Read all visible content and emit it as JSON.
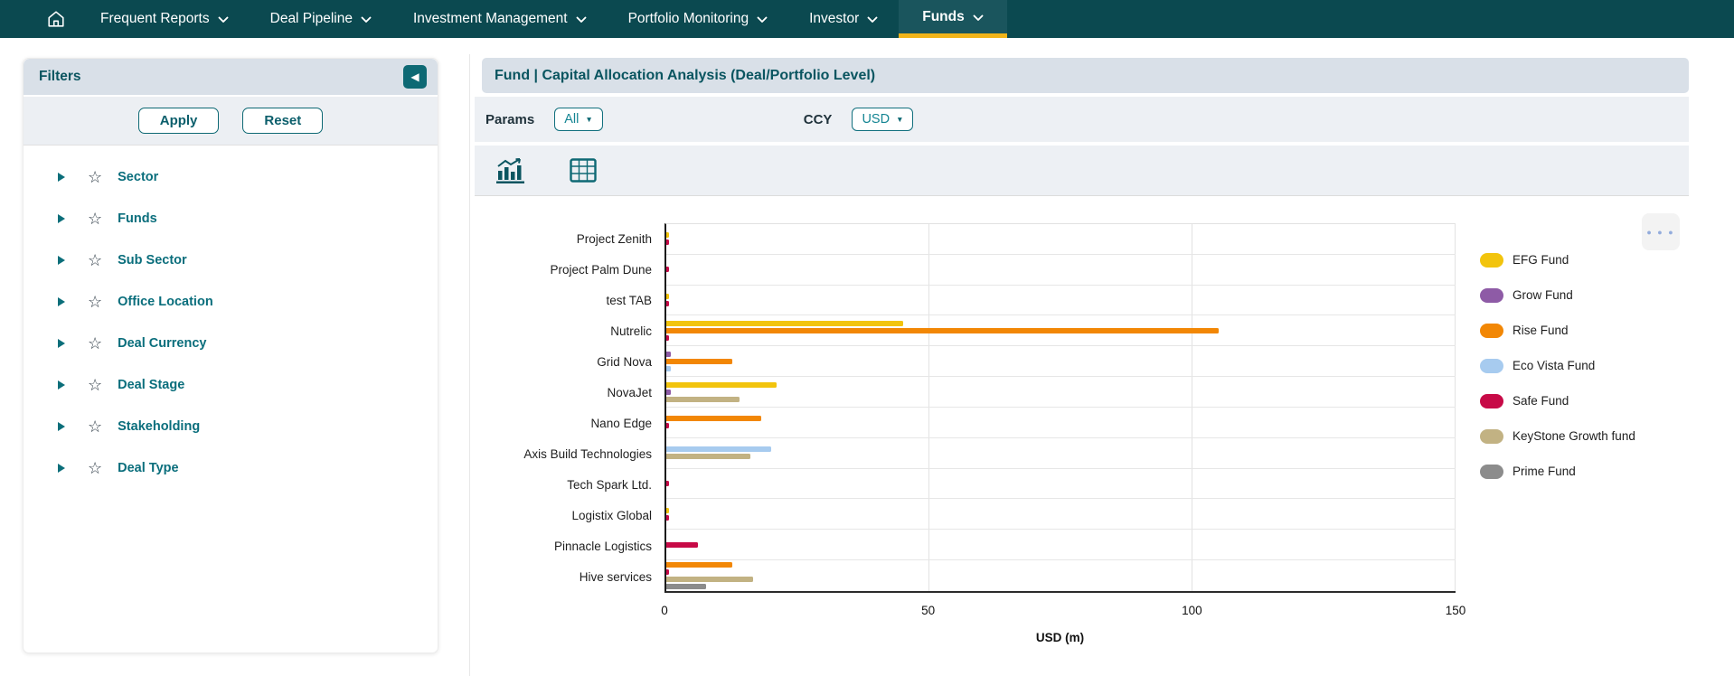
{
  "nav": {
    "items": [
      {
        "label": "Frequent Reports",
        "active": false
      },
      {
        "label": "Deal Pipeline",
        "active": false
      },
      {
        "label": "Investment Management",
        "active": false
      },
      {
        "label": "Portfolio Monitoring",
        "active": false
      },
      {
        "label": "Investor",
        "active": false
      },
      {
        "label": "Funds",
        "active": true
      }
    ]
  },
  "sidebar": {
    "title": "Filters",
    "collapse_icon": "◀",
    "apply_label": "Apply",
    "reset_label": "Reset",
    "star_icon": "☆",
    "filters": [
      "Sector",
      "Funds",
      "Sub Sector",
      "Office Location",
      "Deal Currency",
      "Deal Stage",
      "Stakeholding",
      "Deal Type"
    ]
  },
  "main": {
    "title": "Fund | Capital Allocation Analysis (Deal/Portfolio Level)",
    "params_label": "Params",
    "params_value": "All",
    "ccy_label": "CCY",
    "ccy_value": "USD",
    "dropdown_caret": "▼",
    "menu_dots": "● ● ●"
  },
  "chart_data": {
    "type": "bar",
    "orientation": "horizontal",
    "title": "",
    "xlabel": "USD (m)",
    "ylabel": "",
    "xlim": [
      0,
      150
    ],
    "xticks": [
      0,
      50,
      100,
      150
    ],
    "grid": true,
    "legend_position": "right",
    "categories": [
      "Project Zenith",
      "Project Palm Dune",
      "test TAB",
      "Nutrelic",
      "Grid Nova",
      "NovaJet",
      "Nano Edge",
      "Axis Build Technologies",
      "Tech Spark Ltd.",
      "Logistix Global",
      "Pinnacle Logistics",
      "Hive services"
    ],
    "series": [
      {
        "name": "EFG Fund",
        "color": "#F2C40D",
        "values": [
          0.4,
          0,
          0.4,
          45,
          0,
          21,
          0,
          0,
          0,
          0.4,
          0,
          0
        ]
      },
      {
        "name": "Grow Fund",
        "color": "#8E5BA6",
        "values": [
          0,
          0,
          0,
          0,
          0.8,
          0.8,
          0,
          0,
          0,
          0,
          0,
          0
        ]
      },
      {
        "name": "Rise Fund",
        "color": "#F28705",
        "values": [
          0,
          0,
          0,
          105,
          12.5,
          0,
          18,
          0,
          0,
          0,
          0,
          12.5
        ]
      },
      {
        "name": "Eco Vista Fund",
        "color": "#A7CBEF",
        "values": [
          0,
          0,
          0,
          0,
          0.8,
          0,
          0,
          20,
          0,
          0,
          0,
          0
        ]
      },
      {
        "name": "Safe Fund",
        "color": "#C70A47",
        "values": [
          0.4,
          0.4,
          0.4,
          0.4,
          0,
          0,
          0.4,
          0,
          0.4,
          0.4,
          6,
          0.4
        ]
      },
      {
        "name": "KeyStone Growth fund",
        "color": "#C2B283",
        "values": [
          0,
          0,
          0,
          0,
          0,
          14,
          0,
          16,
          0,
          0,
          0,
          16.5
        ]
      },
      {
        "name": "Prime Fund",
        "color": "#8C8C8C",
        "values": [
          0,
          0,
          0,
          0,
          0,
          0,
          0,
          0,
          0,
          0,
          0,
          7.5
        ]
      }
    ]
  }
}
